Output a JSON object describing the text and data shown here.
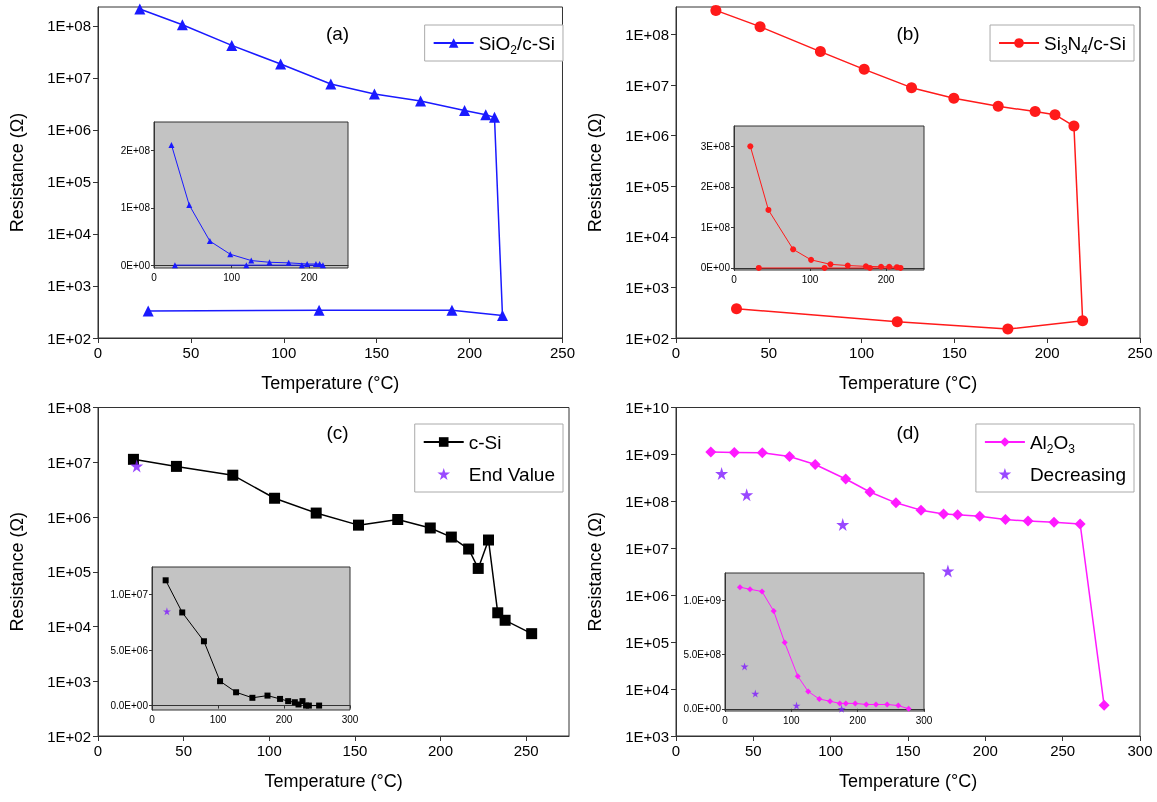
{
  "chart_data": [
    {
      "type": "line",
      "title": "(a)",
      "xlabel": "Temperature (°C)",
      "ylabel": "Resistance (Ω)",
      "log": "y",
      "legend": "top right",
      "xlim": [
        0,
        250
      ],
      "xticks": [
        0,
        50,
        100,
        150,
        200,
        250
      ],
      "ylim": [
        100,
        230000000
      ],
      "yticks": [
        {
          "value": 100,
          "label": "1E+02"
        },
        {
          "value": 1000,
          "label": "1E+03"
        },
        {
          "value": 10000,
          "label": "1E+04"
        },
        {
          "value": 100000,
          "label": "1E+05"
        },
        {
          "value": 1000000,
          "label": "1E+06"
        },
        {
          "value": 10000000,
          "label": "1E+07"
        },
        {
          "value": 100000000,
          "label": "1E+08"
        }
      ],
      "series": [
        {
          "name": "SiO$_{2}$/c-Si",
          "type": "line",
          "marker": "triangle",
          "color": "#1a1aff",
          "x": [
            22.5,
            45.4,
            72,
            98.3,
            125.3,
            148.8,
            173.6,
            197.3,
            208.7,
            213.4,
            217.7,
            190.5,
            119,
            27
          ],
          "values": [
            210000000,
            105000000,
            42000000,
            18500000,
            7600000,
            4900000,
            3600000,
            2350000,
            1950000,
            1740000,
            270,
            340,
            340,
            330
          ]
        }
      ]
    },
    {
      "type": "line",
      "xlim": [
        0,
        250
      ],
      "xticks": [
        0,
        100,
        200
      ],
      "ylim": [
        -5000000,
        250000000
      ],
      "yticks": [
        {
          "value": 0,
          "label": "0E+00"
        },
        {
          "value": 100000000,
          "label": "1E+08"
        },
        {
          "value": 200000000,
          "label": "2E+08"
        }
      ],
      "series": [
        {
          "type": "line",
          "marker": "triangle",
          "color": "#1a1aff",
          "x": [
            22.5,
            45.4,
            72,
            98.3,
            125.3,
            148.8,
            173.6,
            197.3,
            208.7,
            213.4,
            217.7,
            190.5,
            119,
            27
          ],
          "values": [
            210000000,
            105000000,
            42000000,
            19000000,
            8000000,
            5000000,
            4000000,
            2000000,
            2000000,
            2000000,
            0,
            0,
            0,
            0
          ]
        }
      ]
    },
    {
      "type": "line",
      "title": "(b)",
      "xlabel": "Temperature (°C)",
      "ylabel": "Resistance (Ω)",
      "log": "y",
      "legend": "top right",
      "xlim": [
        0,
        250
      ],
      "xticks": [
        0,
        50,
        100,
        150,
        200,
        250
      ],
      "ylim": [
        100,
        350000000
      ],
      "yticks": [
        {
          "value": 100,
          "label": "1E+02"
        },
        {
          "value": 1000,
          "label": "1E+03"
        },
        {
          "value": 10000,
          "label": "1E+04"
        },
        {
          "value": 100000,
          "label": "1E+05"
        },
        {
          "value": 1000000,
          "label": "1E+06"
        },
        {
          "value": 10000000,
          "label": "1E+07"
        },
        {
          "value": 100000000,
          "label": "1E+08"
        }
      ],
      "series": [
        {
          "name": "Si$_{3}$N$_{4}$/c-Si",
          "type": "line",
          "marker": "circle",
          "color": "#ff1a1a",
          "x": [
            21.5,
            45.3,
            77.8,
            101.4,
            126.9,
            149.7,
            173.6,
            193.5,
            204.2,
            214.4,
            219.1,
            178.8,
            119.2,
            32.6
          ],
          "values": [
            300000000,
            143000000,
            46000000,
            20500000,
            8900000,
            5500000,
            3800000,
            3000000,
            2600000,
            1550000,
            220,
            150,
            210,
            380
          ]
        }
      ]
    },
    {
      "type": "line",
      "xlim": [
        0,
        250
      ],
      "xticks": [
        0,
        100,
        200
      ],
      "ylim": [
        -5000000,
        350000000
      ],
      "yticks": [
        {
          "value": 0,
          "label": "0E+00"
        },
        {
          "value": 100000000,
          "label": "1E+08"
        },
        {
          "value": 200000000,
          "label": "2E+08"
        },
        {
          "value": 300000000,
          "label": "3E+08"
        }
      ],
      "series": [
        {
          "type": "line",
          "marker": "circle",
          "color": "#ff1a1a",
          "x": [
            21.5,
            45.3,
            77.8,
            101.4,
            126.9,
            149.7,
            173.6,
            193.5,
            204.2,
            214.4,
            219.1,
            178.8,
            119.2,
            32.6
          ],
          "values": [
            300000000,
            143000000,
            46000000,
            20000000,
            9000000,
            6000000,
            4000000,
            3000000,
            3000000,
            2000000,
            0,
            0,
            0,
            0
          ]
        }
      ]
    },
    {
      "type": "line",
      "title": "(c)",
      "xlabel": "Temperature (°C)",
      "ylabel": "Resistance (Ω)",
      "log": "y",
      "legend": "top right",
      "xlim": [
        0,
        275
      ],
      "xticks": [
        0,
        50,
        100,
        150,
        200,
        250
      ],
      "ylim": [
        100,
        100000000
      ],
      "yticks": [
        {
          "value": 100,
          "label": "1E+02"
        },
        {
          "value": 1000,
          "label": "1E+03"
        },
        {
          "value": 10000,
          "label": "1E+04"
        },
        {
          "value": 100000,
          "label": "1E+05"
        },
        {
          "value": 1000000,
          "label": "1E+06"
        },
        {
          "value": 10000000,
          "label": "1E+07"
        },
        {
          "value": 100000000,
          "label": "1E+08"
        }
      ],
      "series": [
        {
          "name": "c-Si",
          "type": "line",
          "marker": "square",
          "color": "#000000",
          "x": [
            20.7,
            45.8,
            78.7,
            103.1,
            127.4,
            152.1,
            175,
            194,
            206.3,
            216.4,
            222,
            228,
            233.4,
            237.7,
            253.2
          ],
          "values": [
            11300000,
            8400000,
            5800000,
            2200000,
            1180000,
            710000,
            900000,
            630000,
            430000,
            260000,
            115000,
            380000,
            17800,
            13000,
            7400
          ]
        },
        {
          "name": "End Value",
          "type": "scatter",
          "marker": "star",
          "color": "#7f1aff",
          "x": [
            22.6
          ],
          "values": [
            8500000
          ]
        }
      ]
    },
    {
      "type": "line",
      "xlim": [
        0,
        300
      ],
      "xticks": [
        0,
        100,
        200,
        300
      ],
      "ylim": [
        -400000,
        12500000
      ],
      "yticks": [
        {
          "value": 0,
          "label": "0.0E+00"
        },
        {
          "value": 5000000,
          "label": "5.0E+06"
        },
        {
          "value": 10000000,
          "label": "1.0E+07"
        }
      ],
      "series": [
        {
          "type": "line",
          "marker": "square",
          "color": "#000000",
          "x": [
            20.7,
            45.8,
            78.7,
            103.1,
            127.4,
            152.1,
            175,
            194,
            206.3,
            216.4,
            222,
            228,
            233.4,
            237.7,
            253.2
          ],
          "values": [
            11300000,
            8400000,
            5800000,
            2200000,
            1200000,
            700000,
            900000,
            600000,
            400000,
            300000,
            100000,
            400000,
            0,
            0,
            0
          ]
        },
        {
          "type": "scatter",
          "marker": "star",
          "color": "#7f1aff",
          "x": [
            22.6
          ],
          "values": [
            8500000
          ]
        }
      ]
    },
    {
      "type": "line",
      "title": "(d)",
      "xlabel": "Temperature (°C)",
      "ylabel": "Resistance (Ω)",
      "log": "y",
      "legend": "top right",
      "xlim": [
        0,
        300
      ],
      "xticks": [
        0,
        50,
        100,
        150,
        200,
        250,
        300
      ],
      "ylim": [
        1000,
        10000000000
      ],
      "yticks": [
        {
          "value": 1000,
          "label": "1E+03"
        },
        {
          "value": 10000,
          "label": "1E+04"
        },
        {
          "value": 100000,
          "label": "1E+05"
        },
        {
          "value": 1000000,
          "label": "1E+06"
        },
        {
          "value": 10000000,
          "label": "1E+07"
        },
        {
          "value": 100000000,
          "label": "1E+08"
        },
        {
          "value": 1000000000,
          "label": "1E+09"
        },
        {
          "value": 10000000000,
          "label": "1E+10"
        }
      ],
      "series": [
        {
          "name": "Al$_{2}$O$_{3}$",
          "type": "line",
          "marker": "diamond",
          "color": "#ff1aff",
          "x": [
            22.5,
            37.7,
            55.8,
            73.4,
            90,
            109.7,
            125.4,
            142.2,
            158.4,
            173,
            182.1,
            196.4,
            213,
            227.6,
            244.4,
            261.3,
            276.8
          ],
          "values": [
            1120000000,
            1100000000,
            1080000000,
            900000000,
            610000000,
            300000000,
            158000000,
            93000000,
            65000000,
            54000000,
            52000000,
            48000000,
            41000000,
            38000000,
            36000000,
            33000000,
            4500
          ]
        },
        {
          "name": "Decreasing",
          "type": "scatter",
          "marker": "star",
          "color": "#7f1aff",
          "x": [
            29.5,
            45.7,
            107.8,
            175.8
          ],
          "values": [
            390000000,
            138000000,
            32000000,
            3300000
          ]
        }
      ]
    },
    {
      "type": "line",
      "xlim": [
        0,
        300
      ],
      "xticks": [
        0,
        100,
        200,
        300
      ],
      "ylim": [
        -20000000,
        1250000000
      ],
      "yticks": [
        {
          "value": 0,
          "label": "0.0E+00"
        },
        {
          "value": 500000000,
          "label": "5.0E+08"
        },
        {
          "value": 1000000000,
          "label": "1.0E+09"
        }
      ],
      "series": [
        {
          "type": "line",
          "marker": "diamond",
          "color": "#ff1aff",
          "x": [
            22.5,
            37.7,
            55.8,
            73.4,
            90,
            109.7,
            125.4,
            142.2,
            158.4,
            173,
            182.1,
            196.4,
            213,
            227.6,
            244.4,
            261.3,
            276.8
          ],
          "values": [
            1120000000,
            1100000000,
            1080000000,
            900000000,
            610000000,
            300000000,
            160000000,
            90000000,
            70000000,
            50000000,
            50000000,
            50000000,
            40000000,
            40000000,
            40000000,
            30000000,
            0
          ]
        },
        {
          "type": "scatter",
          "marker": "star",
          "color": "#7f1aff",
          "x": [
            29.5,
            45.7,
            107.8,
            175.8
          ],
          "values": [
            390000000,
            140000000,
            30000000,
            0
          ]
        }
      ]
    }
  ]
}
